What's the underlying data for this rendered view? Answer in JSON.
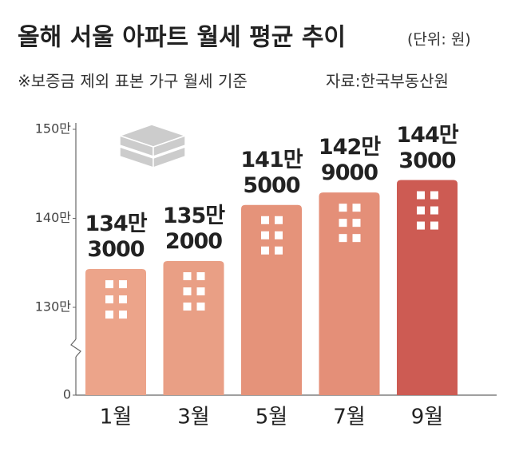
{
  "chart_data": {
    "type": "bar",
    "title": "올해 서울 아파트 월세 평균 추이",
    "unit": "(단위: 원)",
    "subtitle": "※보증금 제외 표본 가구 월세 기준",
    "source": "자료:한국부동산원",
    "categories": [
      "1월",
      "3월",
      "5월",
      "7월",
      "9월"
    ],
    "values": [
      134.3,
      135.2,
      141.5,
      142.9,
      144.3
    ],
    "value_labels": [
      "134만\n3000",
      "135만\n2000",
      "141만\n5000",
      "142만\n9000",
      "144만\n3000"
    ],
    "colors": [
      "#eca48a",
      "#e99f85",
      "#e5937a",
      "#e48f78",
      "#cd5b53"
    ],
    "ylim": [
      0,
      150
    ],
    "yticks": [
      0,
      {
        "value": 130,
        "label": "130만"
      },
      {
        "value": 140,
        "label": "140만"
      },
      {
        "value": 150,
        "label": "150만"
      }
    ],
    "axis_break": true
  }
}
